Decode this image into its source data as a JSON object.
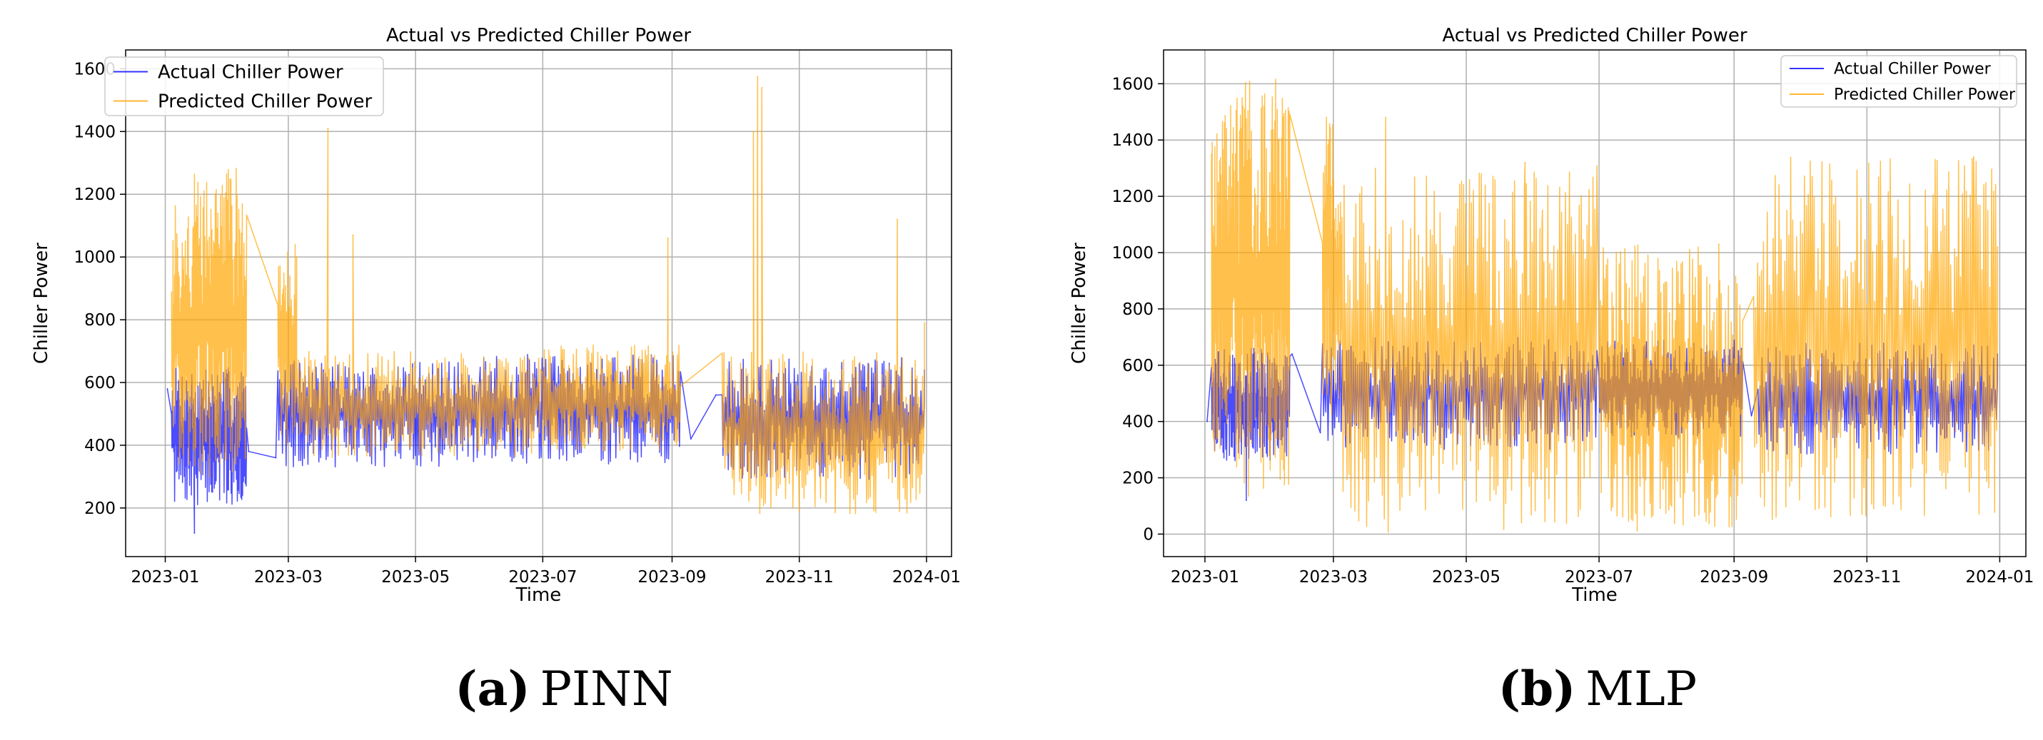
{
  "colors": {
    "actual": "#0000ff",
    "predicted": "#ffa500",
    "grid": "#b0b0b0",
    "axes": "#000000"
  },
  "captions": [
    {
      "letter": "(a)",
      "text": "PINN"
    },
    {
      "letter": "(b)",
      "text": "MLP"
    }
  ],
  "chart_data": [
    {
      "type": "line",
      "title": "Actual vs Predicted Chiller Power",
      "xlabel": "Time",
      "ylabel": "Chiller Power",
      "grid": true,
      "legend_position": "upper-left",
      "x_axis_type": "date",
      "xlim": [
        "2022-12-13",
        "2024-01-13"
      ],
      "ylim": [
        45,
        1660
      ],
      "x_ticks": [
        "2023-01",
        "2023-03",
        "2023-05",
        "2023-07",
        "2023-09",
        "2023-11",
        "2024-01"
      ],
      "y_ticks": [
        200,
        400,
        600,
        800,
        1000,
        1200,
        1400,
        1600
      ],
      "legend": [
        "Actual Chiller Power",
        "Predicted Chiller Power"
      ],
      "series": [
        {
          "name": "Actual Chiller Power",
          "color": "#0000ff",
          "segments": [
            {
              "start": "2023-01-04",
              "end": "2023-02-09",
              "low": 210,
              "high": 650,
              "steps": 170
            },
            {
              "start": "2023-02-24",
              "end": "2023-05-31",
              "low": 330,
              "high": 670,
              "steps": 220
            },
            {
              "start": "2023-06-01",
              "end": "2023-09-05",
              "low": 340,
              "high": 690,
              "steps": 220
            },
            {
              "start": "2023-09-25",
              "end": "2023-12-31",
              "low": 290,
              "high": 680,
              "steps": 230
            }
          ],
          "points": [
            {
              "x": "2023-01-02",
              "y": 580
            },
            {
              "x": "2023-01-15",
              "y": 120
            },
            {
              "x": "2023-02-10",
              "y": 380
            },
            {
              "x": "2023-02-23",
              "y": 360
            },
            {
              "x": "2023-09-10",
              "y": 420
            },
            {
              "x": "2023-09-22",
              "y": 560
            },
            {
              "x": "2023-12-31",
              "y": 640
            }
          ]
        },
        {
          "name": "Predicted Chiller Power",
          "color": "#ffa500",
          "segments": [
            {
              "start": "2023-01-04",
              "end": "2023-01-15",
              "low": 310,
              "high": 1170,
              "steps": 60
            },
            {
              "start": "2023-01-15",
              "end": "2023-02-09",
              "low": 290,
              "high": 1285,
              "steps": 120
            },
            {
              "start": "2023-02-24",
              "end": "2023-03-05",
              "low": 400,
              "high": 1050,
              "steps": 50
            },
            {
              "start": "2023-03-05",
              "end": "2023-06-30",
              "low": 360,
              "high": 700,
              "steps": 240
            },
            {
              "start": "2023-07-01",
              "end": "2023-09-05",
              "low": 380,
              "high": 720,
              "steps": 180
            },
            {
              "start": "2023-09-25",
              "end": "2023-12-31",
              "low": 180,
              "high": 700,
              "steps": 220
            }
          ],
          "points": [
            {
              "x": "2023-03-20",
              "y": 1410
            },
            {
              "x": "2023-04-01",
              "y": 1070
            },
            {
              "x": "2023-08-30",
              "y": 1060
            },
            {
              "x": "2023-10-10",
              "y": 1400
            },
            {
              "x": "2023-10-12",
              "y": 1575
            },
            {
              "x": "2023-10-14",
              "y": 1540
            },
            {
              "x": "2023-11-01",
              "y": 190
            },
            {
              "x": "2023-12-18",
              "y": 1120
            },
            {
              "x": "2023-12-31",
              "y": 790
            }
          ]
        }
      ]
    },
    {
      "type": "line",
      "title": "Actual vs Predicted Chiller Power",
      "xlabel": "Time",
      "ylabel": "Chiller Power",
      "grid": true,
      "legend_position": "upper-right",
      "x_axis_type": "date",
      "xlim": [
        "2022-12-13",
        "2024-01-13"
      ],
      "ylim": [
        -80,
        1720
      ],
      "x_ticks": [
        "2023-01",
        "2023-03",
        "2023-05",
        "2023-07",
        "2023-09",
        "2023-11",
        "2024-01"
      ],
      "y_ticks": [
        0,
        200,
        400,
        600,
        800,
        1000,
        1200,
        1400,
        1600
      ],
      "legend": [
        "Actual Chiller Power",
        "Predicted Chiller Power"
      ],
      "series": [
        {
          "name": "Actual Chiller Power",
          "color": "#0000ff",
          "segments": [
            {
              "start": "2023-01-04",
              "end": "2023-02-09",
              "low": 260,
              "high": 660,
              "steps": 170
            },
            {
              "start": "2023-02-24",
              "end": "2023-06-30",
              "low": 300,
              "high": 700,
              "steps": 250
            },
            {
              "start": "2023-07-01",
              "end": "2023-09-05",
              "low": 340,
              "high": 690,
              "steps": 200
            },
            {
              "start": "2023-09-12",
              "end": "2023-12-31",
              "low": 280,
              "high": 680,
              "steps": 240
            }
          ],
          "points": [
            {
              "x": "2023-01-02",
              "y": 400
            },
            {
              "x": "2023-01-20",
              "y": 120
            },
            {
              "x": "2023-02-10",
              "y": 640
            },
            {
              "x": "2023-02-23",
              "y": 360
            },
            {
              "x": "2023-09-09",
              "y": 420
            },
            {
              "x": "2023-12-31",
              "y": 640
            }
          ]
        },
        {
          "name": "Predicted Chiller Power",
          "color": "#ffa500",
          "segments": [
            {
              "start": "2023-01-04",
              "end": "2023-01-15",
              "low": 290,
              "high": 1540,
              "steps": 70
            },
            {
              "start": "2023-01-15",
              "end": "2023-02-09",
              "low": 120,
              "high": 1630,
              "steps": 130
            },
            {
              "start": "2023-02-24",
              "end": "2023-03-05",
              "low": 400,
              "high": 1490,
              "steps": 50
            },
            {
              "start": "2023-03-05",
              "end": "2023-06-30",
              "low": 0,
              "high": 1320,
              "steps": 260
            },
            {
              "start": "2023-07-01",
              "end": "2023-09-05",
              "low": 0,
              "high": 1030,
              "steps": 200
            },
            {
              "start": "2023-09-10",
              "end": "2023-12-31",
              "low": 50,
              "high": 1340,
              "steps": 250
            }
          ],
          "points": [
            {
              "x": "2023-03-25",
              "y": 1480
            },
            {
              "x": "2023-05-28",
              "y": 1320
            },
            {
              "x": "2023-06-05",
              "y": 1150
            },
            {
              "x": "2023-08-25",
              "y": 1030
            },
            {
              "x": "2023-12-20",
              "y": 1340
            },
            {
              "x": "2023-12-31",
              "y": 1020
            }
          ]
        }
      ]
    }
  ]
}
